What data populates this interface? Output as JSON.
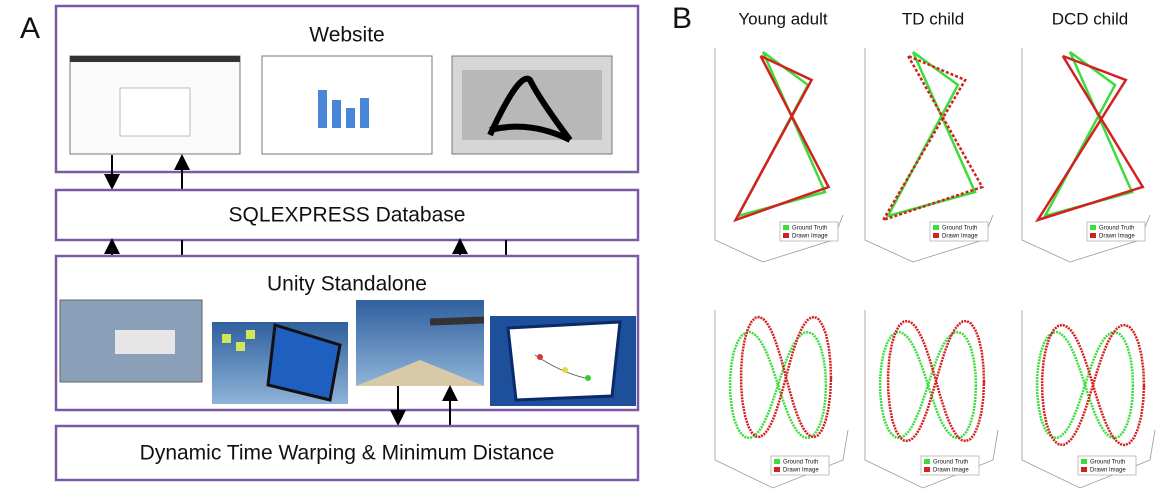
{
  "panel_a": {
    "label": "A",
    "boxes": [
      "Website",
      "SQLEXPRESS Database",
      "Unity Standalone",
      "Dynamic Time Warping & Minimum Distance"
    ]
  },
  "panel_b": {
    "label": "B",
    "columns": [
      "Young adult",
      "TD child",
      "DCD child"
    ],
    "legend": [
      "Ground Truth",
      "Drawn Image"
    ]
  }
}
